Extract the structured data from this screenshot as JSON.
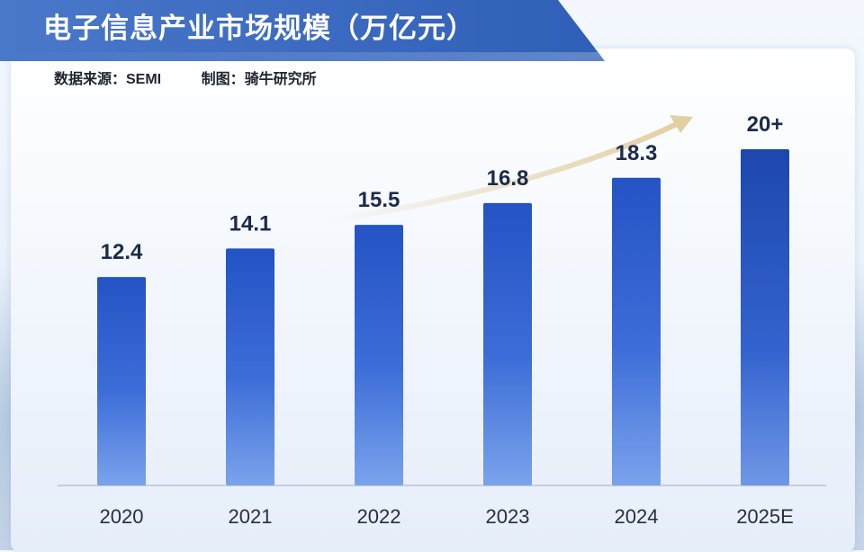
{
  "header": {
    "title": "电子信息产业市场规模（万亿元）",
    "source": "数据来源：SEMI",
    "credit": "制图：骑牛研究所"
  },
  "colors": {
    "title_band": "#3a69c0",
    "bar_top": "#2453c4",
    "bar_bottom": "#7aa3ec",
    "arrow": "#e2cfa3",
    "label": "#1c2b4a"
  },
  "chart_data": {
    "type": "bar",
    "title": "电子信息产业市场规模（万亿元）",
    "xlabel": "",
    "ylabel": "",
    "categories": [
      "2020",
      "2021",
      "2022",
      "2023",
      "2024",
      "2025E"
    ],
    "values": [
      12.4,
      14.1,
      15.5,
      16.8,
      18.3,
      20
    ],
    "value_labels": [
      "12.4",
      "14.1",
      "15.5",
      "16.8",
      "18.3",
      "20+"
    ],
    "ylim": [
      0,
      20
    ],
    "grid": false,
    "legend": "none",
    "trend_arrow": true
  }
}
